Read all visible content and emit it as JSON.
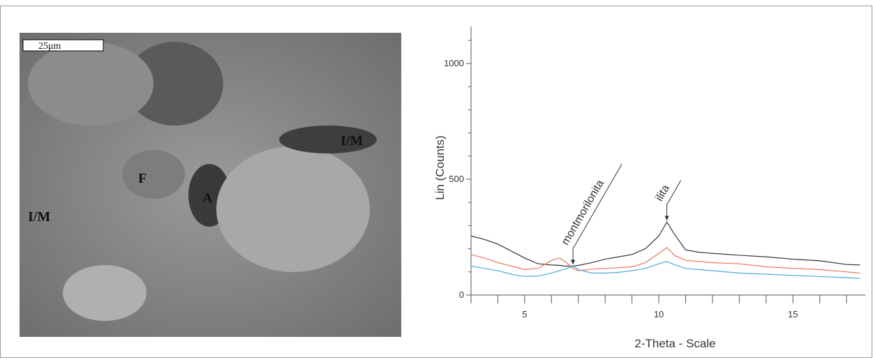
{
  "image": {
    "scale_bar": "25μm",
    "labels": [
      "F",
      "A",
      "I/M",
      "I/M"
    ]
  },
  "chart_data": {
    "type": "line",
    "x_label": "2-Theta - Scale",
    "y_label": "Lin (Counts)",
    "x": [
      3,
      3.5,
      4,
      4.5,
      5,
      5.5,
      6,
      6.3,
      6.5,
      6.8,
      7,
      7.5,
      8,
      8.5,
      9,
      9.5,
      10,
      10.3,
      10.6,
      11,
      11.5,
      12,
      13,
      14,
      15,
      16,
      17,
      17.5
    ],
    "series": [
      {
        "color": "#333333",
        "values": [
          255,
          240,
          220,
          190,
          160,
          135,
          130,
          128,
          125,
          125,
          128,
          140,
          155,
          165,
          175,
          200,
          255,
          315,
          260,
          195,
          185,
          180,
          172,
          165,
          155,
          148,
          132,
          130
        ]
      },
      {
        "color": "#f0735a",
        "values": [
          175,
          160,
          140,
          125,
          110,
          115,
          150,
          160,
          145,
          115,
          105,
          112,
          115,
          118,
          122,
          140,
          180,
          205,
          170,
          150,
          145,
          140,
          135,
          122,
          115,
          110,
          100,
          95
        ]
      },
      {
        "color": "#4aa8d8",
        "values": [
          125,
          115,
          105,
          90,
          80,
          82,
          95,
          105,
          112,
          125,
          110,
          95,
          95,
          98,
          105,
          115,
          135,
          145,
          130,
          115,
          110,
          105,
          95,
          90,
          85,
          80,
          75,
          72
        ]
      }
    ],
    "xlim": [
      3,
      17.7
    ],
    "ylim": [
      0,
      1160
    ],
    "xticks": [
      5,
      10,
      15
    ],
    "yticks": [
      0,
      500,
      1000
    ],
    "xminorticks": [
      3,
      4,
      6,
      7,
      8,
      9,
      11,
      12,
      13,
      14,
      16,
      17
    ],
    "yminorticks": [
      100,
      200,
      300,
      400,
      600,
      700,
      800,
      900,
      1100
    ],
    "annotations": [
      {
        "text": "montmorilonita",
        "x": 6.8,
        "y": 125
      },
      {
        "text": "ilita",
        "x": 10.3,
        "y": 315
      }
    ]
  }
}
